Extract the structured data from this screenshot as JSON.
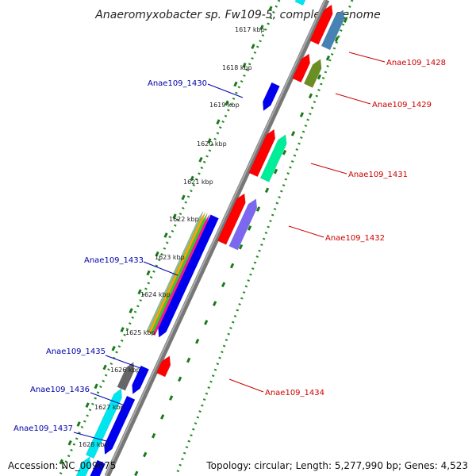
{
  "title": "Anaeromyxobacter sp. Fw109-5, complete genome",
  "footer": {
    "accession": "Accession: NC_009675",
    "topology": "Topology: circular; Length: 5,277,990 bp; Genes: 4,523"
  },
  "scale": {
    "unit_label": "kbp",
    "ticks": [
      {
        "kbp": 1617,
        "label": "1617 kbp"
      },
      {
        "kbp": 1618,
        "label": "1618 kbp"
      },
      {
        "kbp": 1619,
        "label": "1619 kbp"
      },
      {
        "kbp": 1620,
        "label": "1620 kbp"
      },
      {
        "kbp": 1621,
        "label": "1621 kbp"
      },
      {
        "kbp": 1622,
        "label": "1622 kbp"
      },
      {
        "kbp": 1623,
        "label": "1623 kbp"
      },
      {
        "kbp": 1624,
        "label": "1624 kbp"
      },
      {
        "kbp": 1625,
        "label": "1625 kbp"
      },
      {
        "kbp": 1626,
        "label": "1626 kbp"
      },
      {
        "kbp": 1627,
        "label": "1627 kbp"
      },
      {
        "kbp": 1628,
        "label": "1628 kbp"
      }
    ]
  },
  "genes": {
    "forward": [
      {
        "name": "Anae109_1428",
        "start": 1616.3,
        "end": 1617.3,
        "color": "#ff0000"
      },
      {
        "name": "Anae109_1428_b",
        "start": 1616.3,
        "end": 1617.3,
        "color": "#4682b4"
      },
      {
        "name": "Anae109_1429",
        "start": 1617.6,
        "end": 1618.3,
        "color": "#ff0000"
      },
      {
        "name": "Anae109_1429_b",
        "start": 1617.6,
        "end": 1618.3,
        "color": "#6b8e23"
      },
      {
        "name": "Anae109_1431",
        "start": 1619.6,
        "end": 1620.8,
        "color": "#ff0000"
      },
      {
        "name": "Anae109_1431_b",
        "start": 1619.6,
        "end": 1620.8,
        "color": "#00ee99"
      },
      {
        "name": "Anae109_1432",
        "start": 1621.3,
        "end": 1622.6,
        "color": "#ff0000"
      },
      {
        "name": "Anae109_1432_b",
        "start": 1621.3,
        "end": 1622.6,
        "color": "#7b68ee"
      },
      {
        "name": "Anae109_1434",
        "start": 1625.6,
        "end": 1626.1,
        "color": "#ff0000"
      }
    ],
    "reverse": [
      {
        "name": "Anae109_1430",
        "start": 1618.6,
        "end": 1619.3,
        "color": "#0000ee"
      },
      {
        "name": "Anae109_1433",
        "start": 1622.1,
        "end": 1625.3,
        "color": "#0000ee"
      },
      {
        "name": "Anae109_1435",
        "start": 1626.1,
        "end": 1626.8,
        "color": "#0000ee"
      },
      {
        "name": "Anae109_1436",
        "start": 1626.9,
        "end": 1628.4,
        "color": "#0000ee"
      },
      {
        "name": "Anae109_1437",
        "start": 1628.6,
        "end": 1629.5,
        "color": "#0000ee"
      }
    ]
  },
  "labels": {
    "red": [
      {
        "text": "Anae109_1428",
        "color": "#cc0000"
      },
      {
        "text": "Anae109_1429",
        "color": "#cc0000"
      },
      {
        "text": "Anae109_1431",
        "color": "#cc0000"
      },
      {
        "text": "Anae109_1432",
        "color": "#cc0000"
      },
      {
        "text": "Anae109_1434",
        "color": "#cc0000"
      }
    ],
    "blue": [
      {
        "text": "Anae109_1430",
        "color": "#0000aa"
      },
      {
        "text": "Anae109_1433",
        "color": "#0000aa"
      },
      {
        "text": "Anae109_1435",
        "color": "#0000aa"
      },
      {
        "text": "Anae109_1436",
        "color": "#0000aa"
      },
      {
        "text": "Anae109_1437",
        "color": "#0000aa"
      }
    ]
  }
}
